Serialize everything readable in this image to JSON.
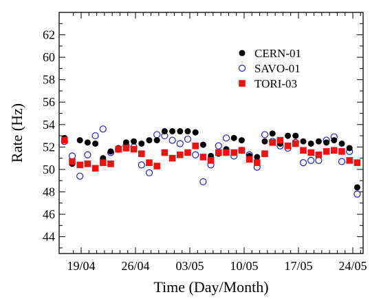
{
  "chart_data": {
    "type": "scatter",
    "title": "",
    "xlabel": "Time (Day/Month)",
    "ylabel": "Rate (Hz)",
    "x_ticks": [
      "19/04",
      "26/04",
      "03/05",
      "10/05",
      "17/05",
      "24/05"
    ],
    "xlim_day": [
      16.5,
      44.5
    ],
    "ylim": [
      42.5,
      64
    ],
    "y_ticks": [
      44,
      46,
      48,
      50,
      52,
      54,
      56,
      58,
      60,
      62
    ],
    "legend_position": "top-right",
    "series": [
      {
        "name": "CERN-01",
        "marker": "filled-circle",
        "color": "#000000",
        "x": [
          18,
          19,
          20,
          21,
          22,
          23,
          24,
          25,
          26,
          27,
          28,
          29,
          30,
          31,
          32,
          33,
          34,
          35,
          36,
          37,
          38,
          39,
          40,
          41,
          42,
          43,
          44,
          45,
          46,
          47,
          48,
          49,
          50,
          51,
          52,
          53,
          54,
          55,
          56
        ],
        "y": [
          52.8,
          50.5,
          52.6,
          52.4,
          52.3,
          51.0,
          51.6,
          51.9,
          52.4,
          52.5,
          52.3,
          52.6,
          52.6,
          53.4,
          53.4,
          53.4,
          53.4,
          53.3,
          52.2,
          51.2,
          51.4,
          51.8,
          52.8,
          52.6,
          51.2,
          51.1,
          52.5,
          53.2,
          52.3,
          53.0,
          53.0,
          52.5,
          52.3,
          52.5,
          52.4,
          52.6,
          52.3,
          51.9,
          48.4
        ]
      },
      {
        "name": "SAVO-01",
        "marker": "open-circle",
        "color": "#1c1ccc",
        "x": [
          18,
          19,
          20,
          21,
          22,
          23,
          24,
          25,
          26,
          27,
          28,
          29,
          30,
          31,
          32,
          33,
          34,
          35,
          36,
          37,
          38,
          39,
          40,
          41,
          42,
          43,
          44,
          45,
          46,
          47,
          48,
          49,
          50,
          51,
          52,
          53,
          54,
          55,
          56
        ],
        "y": [
          52.5,
          51.2,
          49.4,
          51.3,
          53.0,
          53.6,
          51.5,
          51.8,
          52.1,
          52.0,
          50.4,
          49.7,
          53.1,
          53.0,
          52.6,
          52.3,
          52.7,
          51.3,
          48.9,
          50.4,
          52.1,
          52.8,
          51.2,
          51.7,
          51.3,
          50.2,
          53.1,
          52.5,
          52.1,
          51.9,
          52.4,
          50.6,
          50.8,
          50.8,
          52.6,
          52.9,
          50.7,
          51.6,
          47.8
        ]
      },
      {
        "name": "TORI-03",
        "marker": "filled-square",
        "color": "#ee1111",
        "x": [
          18,
          19,
          20,
          21,
          22,
          23,
          24,
          25,
          26,
          27,
          28,
          29,
          30,
          31,
          32,
          33,
          34,
          35,
          36,
          37,
          38,
          39,
          40,
          41,
          42,
          43,
          44,
          45,
          46,
          47,
          48,
          49,
          50,
          51,
          52,
          53,
          54,
          55,
          56
        ],
        "y": [
          52.6,
          50.7,
          50.4,
          50.5,
          50.1,
          50.6,
          50.5,
          51.8,
          51.9,
          51.8,
          51.4,
          50.6,
          50.3,
          51.5,
          51.0,
          51.3,
          51.5,
          52.1,
          51.1,
          50.8,
          51.5,
          51.5,
          51.5,
          51.7,
          50.9,
          50.6,
          51.4,
          52.4,
          52.6,
          52.1,
          52.3,
          51.7,
          51.5,
          51.3,
          51.6,
          51.7,
          51.6,
          50.8,
          50.6
        ]
      }
    ]
  }
}
